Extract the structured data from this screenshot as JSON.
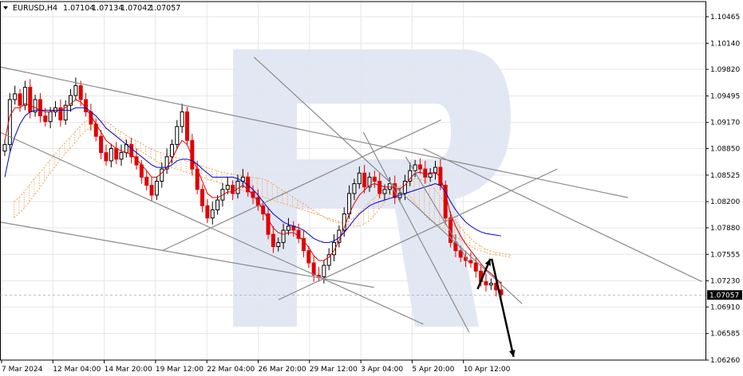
{
  "header": {
    "symbol": "EURUSD,H4",
    "open": "1.07104",
    "high": "1.07134",
    "low": "1.07042",
    "close": "1.07057",
    "menu_icon": "triangle-down-icon"
  },
  "colors": {
    "bull": "#000000",
    "bear": "#e00000",
    "tenkan": "#e00000",
    "kijun": "#0000cc",
    "cloud": "#f0a860",
    "trendline": "#8a8a8a",
    "grid": "#e6e6e6",
    "watermark": "#d8dff0",
    "arrow": "#000000"
  },
  "chart_data": {
    "type": "candlestick",
    "symbol": "EURUSD",
    "timeframe": "H4",
    "ylim": [
      1.0626,
      1.1065
    ],
    "y_ticks": [
      "1.10465",
      "1.10140",
      "1.09820",
      "1.09495",
      "1.09170",
      "1.08850",
      "1.08525",
      "1.08200",
      "1.07880",
      "1.07555",
      "1.07230",
      "1.06910",
      "1.06585",
      "1.06260"
    ],
    "x_ticks": [
      "7 Mar 2024",
      "12 Mar 04:00",
      "14 Mar 20:00",
      "19 Mar 12:00",
      "22 Mar 04:00",
      "26 Mar 20:00",
      "29 Mar 12:00",
      "3 Apr 04:00",
      "5 Apr 20:00",
      "10 Apr 12:00"
    ],
    "current_price": "1.07057",
    "grid": true,
    "indicators": [
      "Ichimoku Tenkan-sen",
      "Ichimoku Kijun-sen",
      "Ichimoku Cloud"
    ],
    "close_series": [
      1.089,
      1.0945,
      1.0952,
      1.0938,
      1.096,
      1.093,
      1.0945,
      1.0925,
      1.0918,
      1.093,
      1.0935,
      1.092,
      1.0938,
      1.095,
      1.0962,
      1.0945,
      1.093,
      1.0915,
      1.09,
      1.088,
      1.087,
      1.0885,
      1.0872,
      1.088,
      1.089,
      1.0875,
      1.0865,
      1.085,
      1.084,
      1.0828,
      1.0845,
      1.086,
      1.0875,
      1.089,
      1.0912,
      1.093,
      1.0895,
      1.086,
      1.0835,
      1.0815,
      1.08,
      1.081,
      1.0822,
      1.0835,
      1.084,
      1.083,
      1.0845,
      1.085,
      1.0832,
      1.0825,
      1.0815,
      1.0805,
      1.078,
      1.0765,
      1.077,
      1.0785,
      1.079,
      1.0785,
      1.0775,
      1.076,
      1.0745,
      1.073,
      1.0728,
      1.0742,
      1.0755,
      1.077,
      1.0785,
      1.0805,
      1.083,
      1.0842,
      1.0855,
      1.0838,
      1.085,
      1.0845,
      1.083,
      1.0835,
      1.0842,
      1.0825,
      1.083,
      1.0845,
      1.0858,
      1.0865,
      1.086,
      1.085,
      1.0855,
      1.0862,
      1.084,
      1.08,
      1.077,
      1.076,
      1.0752,
      1.0748,
      1.0745,
      1.0735,
      1.0722,
      1.0718,
      1.072,
      1.0712,
      1.0706
    ],
    "tenkan_series": [
      1.0895,
      1.0925,
      1.0935,
      1.0935,
      1.094,
      1.0938,
      1.0935,
      1.0932,
      1.093,
      1.093,
      1.0932,
      1.0932,
      1.0935,
      1.094,
      1.0945,
      1.0942,
      1.0935,
      1.0925,
      1.0915,
      1.0905,
      1.0895,
      1.089,
      1.0885,
      1.0882,
      1.088,
      1.0878,
      1.0872,
      1.0865,
      1.0858,
      1.085,
      1.085,
      1.0855,
      1.0862,
      1.0872,
      1.0885,
      1.0895,
      1.089,
      1.0875,
      1.086,
      1.0845,
      1.083,
      1.0825,
      1.0825,
      1.0828,
      1.0832,
      1.0832,
      1.0836,
      1.084,
      1.0835,
      1.0828,
      1.082,
      1.081,
      1.0798,
      1.0788,
      1.0782,
      1.078,
      1.0782,
      1.0782,
      1.0778,
      1.0772,
      1.0764,
      1.0754,
      1.0748,
      1.0748,
      1.0752,
      1.076,
      1.0772,
      1.0788,
      1.0805,
      1.0818,
      1.0828,
      1.0834,
      1.084,
      1.0842,
      1.084,
      1.0838,
      1.0838,
      1.0836,
      1.0836,
      1.084,
      1.0848,
      1.0855,
      1.0856,
      1.0854,
      1.0854,
      1.0856,
      1.085,
      1.083,
      1.0805,
      1.079,
      1.0778,
      1.0768,
      1.076,
      1.0752,
      1.0744,
      1.0737,
      1.0732,
      1.0726,
      1.072
    ],
    "kijun_series": [
      1.085,
      1.088,
      1.09,
      1.0915,
      1.0925,
      1.093,
      1.0932,
      1.0932,
      1.0932,
      1.0932,
      1.0932,
      1.0932,
      1.0932,
      1.0932,
      1.0935,
      1.0935,
      1.0935,
      1.093,
      1.0925,
      1.0918,
      1.091,
      1.0905,
      1.09,
      1.0895,
      1.089,
      1.0885,
      1.088,
      1.0875,
      1.087,
      1.0865,
      1.0862,
      1.0862,
      1.0862,
      1.0865,
      1.087,
      1.0872,
      1.0872,
      1.087,
      1.0866,
      1.086,
      1.0855,
      1.085,
      1.085,
      1.085,
      1.085,
      1.085,
      1.0848,
      1.0845,
      1.084,
      1.0835,
      1.0828,
      1.082,
      1.0812,
      1.0805,
      1.08,
      1.0795,
      1.0792,
      1.079,
      1.0788,
      1.0785,
      1.078,
      1.0775,
      1.0772,
      1.077,
      1.077,
      1.0772,
      1.0776,
      1.0782,
      1.079,
      1.0798,
      1.0805,
      1.081,
      1.0815,
      1.0818,
      1.082,
      1.0822,
      1.0824,
      1.0826,
      1.0828,
      1.083,
      1.0832,
      1.0834,
      1.0836,
      1.0838,
      1.084,
      1.0842,
      1.084,
      1.0832,
      1.082,
      1.081,
      1.0802,
      1.0795,
      1.079,
      1.0786,
      1.0783,
      1.0781,
      1.078,
      1.0779,
      1.0778
    ],
    "cloud_a": [
      1.082,
      1.0825,
      1.0832,
      1.084,
      1.0848,
      1.0855,
      1.0862,
      1.087,
      1.0878,
      1.0885,
      1.0892,
      1.0898,
      1.0905,
      1.0912,
      1.0918,
      1.092,
      1.0922,
      1.092,
      1.0918,
      1.0915,
      1.091,
      1.0906,
      1.0902,
      1.0898,
      1.0895,
      1.0892,
      1.0888,
      1.0885,
      1.0882,
      1.088,
      1.0878,
      1.0876,
      1.0874,
      1.0872,
      1.087,
      1.0868,
      1.0866,
      1.0864,
      1.0862,
      1.086,
      1.0858,
      1.0856,
      1.0855,
      1.0854,
      1.0853,
      1.0852,
      1.0851,
      1.085,
      1.0849,
      1.0848,
      1.0846,
      1.0842,
      1.0838,
      1.0834,
      1.083,
      1.0826,
      1.0822,
      1.0818,
      1.0814,
      1.081,
      1.0806,
      1.0802,
      1.0798,
      1.0796,
      1.0794,
      1.0794,
      1.0796,
      1.08,
      1.0806,
      1.0812,
      1.0818,
      1.0824,
      1.083,
      1.0835,
      1.0838,
      1.084,
      1.0838,
      1.0834,
      1.0828,
      1.082,
      1.0812,
      1.0804,
      1.0798,
      1.0794,
      1.079,
      1.0786,
      1.0782,
      1.0778,
      1.0774,
      1.077,
      1.0766,
      1.0762,
      1.076,
      1.0758,
      1.0756,
      1.0755,
      1.0754,
      1.0753,
      1.0752
    ],
    "cloud_b": [
      1.08,
      1.0806,
      1.0812,
      1.082,
      1.0828,
      1.0836,
      1.0845,
      1.0854,
      1.0862,
      1.087,
      1.0878,
      1.0885,
      1.0892,
      1.09,
      1.0906,
      1.091,
      1.0912,
      1.0912,
      1.091,
      1.0906,
      1.0902,
      1.0898,
      1.0894,
      1.089,
      1.0886,
      1.0882,
      1.0878,
      1.0874,
      1.087,
      1.0866,
      1.0864,
      1.0862,
      1.086,
      1.0858,
      1.0856,
      1.0854,
      1.0852,
      1.085,
      1.0848,
      1.0846,
      1.0844,
      1.0842,
      1.084,
      1.0838,
      1.0836,
      1.0834,
      1.0832,
      1.083,
      1.0828,
      1.0826,
      1.0824,
      1.0822,
      1.082,
      1.0818,
      1.0816,
      1.0814,
      1.0812,
      1.081,
      1.0808,
      1.0806,
      1.0804,
      1.0802,
      1.08,
      1.0798,
      1.0796,
      1.0794,
      1.0792,
      1.079,
      1.079,
      1.0792,
      1.0796,
      1.0802,
      1.081,
      1.0818,
      1.0826,
      1.0832,
      1.0838,
      1.0842,
      1.0846,
      1.0848,
      1.0848,
      1.0846,
      1.0842,
      1.0836,
      1.0828,
      1.0818,
      1.0808,
      1.0798,
      1.079,
      1.0782,
      1.0776,
      1.077,
      1.0766,
      1.0762,
      1.076,
      1.0758,
      1.0757,
      1.0756,
      1.0755
    ],
    "trendlines": [
      {
        "name": "upper-channel-line",
        "from": [
          0,
          1.0985
        ],
        "to": [
          0.89,
          1.0825
        ]
      },
      {
        "name": "lower-channel-line",
        "from": [
          0,
          1.0905
        ],
        "to": [
          0.6,
          1.067
        ]
      },
      {
        "name": "lower-support-line",
        "from": [
          0,
          1.0795
        ],
        "to": [
          0.53,
          1.0715
        ]
      },
      {
        "name": "steep-descending-line-1",
        "from": [
          0.36,
          1.0997
        ],
        "to": [
          0.74,
          1.0695
        ]
      },
      {
        "name": "steep-descending-line-2",
        "from": [
          0.6,
          1.0885
        ],
        "to": [
          0.995,
          1.0722
        ]
      },
      {
        "name": "steep-descending-line-3",
        "from": [
          0.515,
          1.0905
        ],
        "to": [
          0.665,
          1.066
        ]
      },
      {
        "name": "ascending-line-1",
        "from": [
          0.23,
          1.076
        ],
        "to": [
          0.625,
          1.092
        ]
      },
      {
        "name": "ascending-line-2",
        "from": [
          0.395,
          1.07
        ],
        "to": [
          0.79,
          1.086
        ]
      },
      {
        "name": "short-descending-line",
        "from": [
          0.575,
          1.0875
        ],
        "to": [
          0.665,
          1.0745
        ]
      }
    ],
    "forecast_arrows": [
      {
        "from": [
          0.677,
          1.0713
        ],
        "to": [
          0.695,
          1.075
        ]
      },
      {
        "from": [
          0.697,
          1.075
        ],
        "to": [
          0.728,
          1.063
        ]
      }
    ]
  }
}
